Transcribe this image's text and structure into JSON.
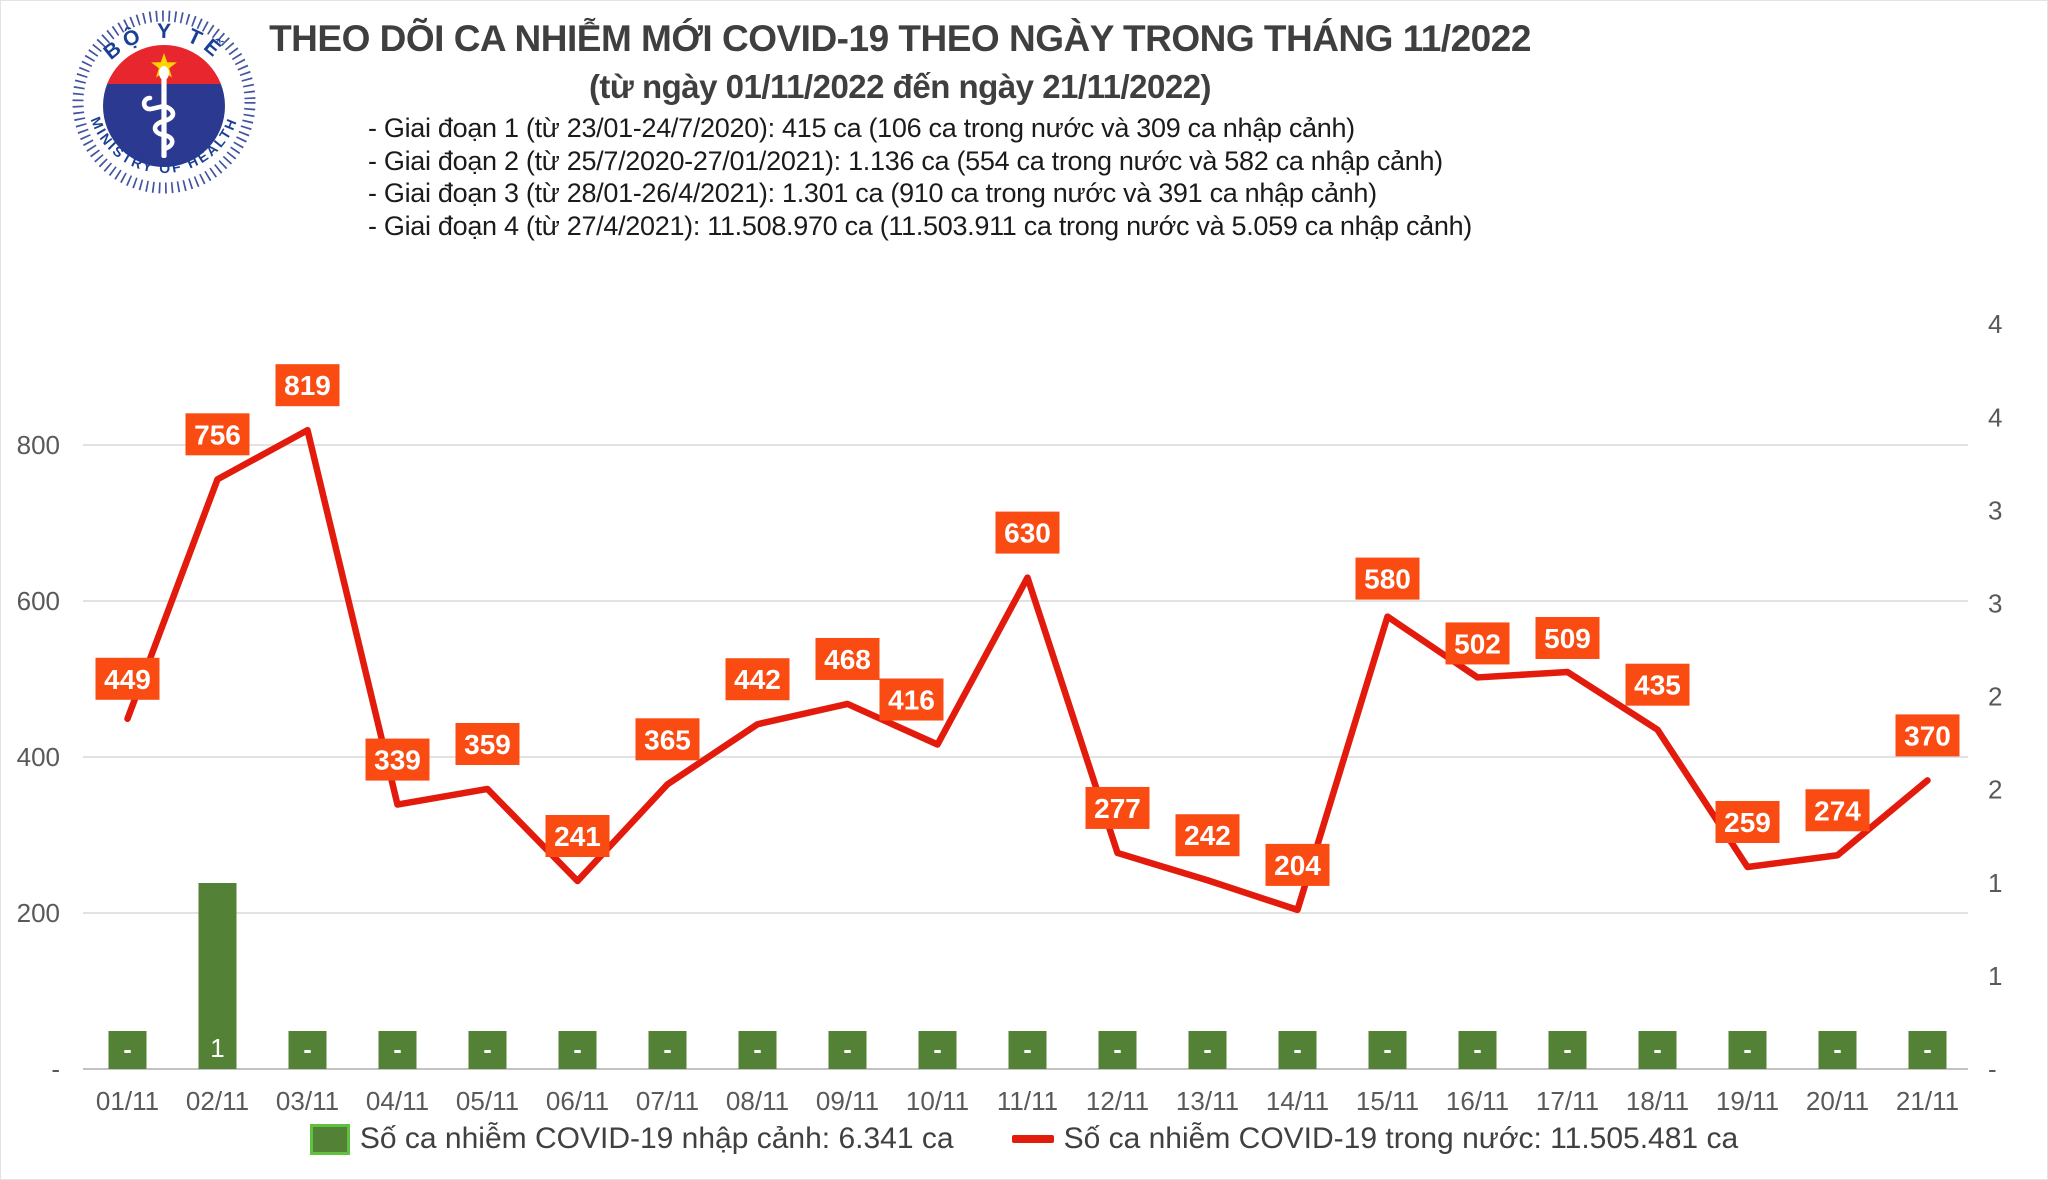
{
  "logo": {
    "top_text": "BỘ Y TẾ",
    "bottom_text": "MINISTRY OF HEALTH"
  },
  "header": {
    "title": "THEO DÕI CA NHIỄM MỚI COVID-19 THEO NGÀY TRONG THÁNG 11/2022",
    "subtitle": "(từ ngày 01/11/2022 đến ngày 21/11/2022)",
    "periods": [
      "- Giai đoạn 1 (từ 23/01-24/7/2020): 415 ca (106 ca trong nước và 309 ca nhập cảnh)",
      "- Giai đoạn 2 (từ 25/7/2020-27/01/2021): 1.136 ca (554 ca trong nước và 582 ca nhập cảnh)",
      "- Giai đoạn 3 (từ 28/01-26/4/2021): 1.301 ca (910 ca trong nước và 391 ca nhập cảnh)",
      "- Giai đoạn 4 (từ 27/4/2021): 11.508.970 ca (11.503.911 ca trong nước và 5.059 ca nhập cảnh)"
    ]
  },
  "chart_data": {
    "type": "combo-bar-line",
    "categories": [
      "01/11",
      "02/11",
      "03/11",
      "04/11",
      "05/11",
      "06/11",
      "07/11",
      "08/11",
      "09/11",
      "10/11",
      "11/11",
      "12/11",
      "13/11",
      "14/11",
      "15/11",
      "16/11",
      "17/11",
      "18/11",
      "19/11",
      "20/11",
      "21/11"
    ],
    "series": [
      {
        "name": "Số ca nhiễm COVID-19 nhập cảnh",
        "type": "bar",
        "axis": "right",
        "values": [
          0,
          1,
          0,
          0,
          0,
          0,
          0,
          0,
          0,
          0,
          0,
          0,
          0,
          0,
          0,
          0,
          0,
          0,
          0,
          0,
          0
        ],
        "labels": [
          "-",
          "1",
          "-",
          "-",
          "-",
          "-",
          "-",
          "-",
          "-",
          "-",
          "-",
          "-",
          "-",
          "-",
          "-",
          "-",
          "-",
          "-",
          "-",
          "-",
          "-"
        ]
      },
      {
        "name": "Số ca nhiễm COVID-19 trong nước",
        "type": "line",
        "axis": "left",
        "values": [
          449,
          756,
          819,
          339,
          359,
          241,
          365,
          442,
          468,
          416,
          630,
          277,
          242,
          204,
          580,
          502,
          509,
          435,
          259,
          274,
          370
        ],
        "labels": [
          "449",
          "756",
          "819",
          "339",
          "359",
          "241",
          "365",
          "442",
          "468",
          "416",
          "630",
          "277",
          "242",
          "204",
          "580",
          "502",
          "509",
          "435",
          "259",
          "274",
          "370"
        ]
      }
    ],
    "left_axis": {
      "ticks": [
        {
          "label": "800",
          "value": 800
        },
        {
          "label": "600",
          "value": 600
        },
        {
          "label": "400",
          "value": 400
        },
        {
          "label": "200",
          "value": 200
        },
        {
          "label": "-",
          "value": 0
        }
      ],
      "range": [
        0,
        955
      ],
      "grid": true
    },
    "right_axis": {
      "labels_top_to_bottom": [
        "4",
        "4",
        "3",
        "3",
        "2",
        "2",
        "1",
        "1",
        "-"
      ],
      "values_top_to_bottom": [
        4,
        3.5,
        3,
        2.5,
        2,
        1.5,
        1,
        0.5,
        0
      ],
      "range": [
        0,
        4
      ],
      "grid": false
    },
    "legend_position": "bottom"
  },
  "legend": {
    "items": [
      {
        "label": "Số ca nhiễm COVID-19 nhập cảnh: 6.341 ca",
        "swatch": "bar"
      },
      {
        "label": "Số ca nhiễm COVID-19 trong nước: 11.505.481 ca",
        "swatch": "line"
      }
    ]
  },
  "colors": {
    "line": "#e31b0c",
    "data_label_bg": "#fa4b12",
    "data_label_text": "#ffffff",
    "bar": "#538135",
    "bar_border": "#5fc13d",
    "grid": "#d9d9d9",
    "axis_line": "#c3c3c3",
    "axis_text": "#595959",
    "title_text": "#3f3f3f",
    "logo_blue": "#2b3990",
    "logo_red": "#e8262d",
    "logo_star": "#ffd400"
  }
}
